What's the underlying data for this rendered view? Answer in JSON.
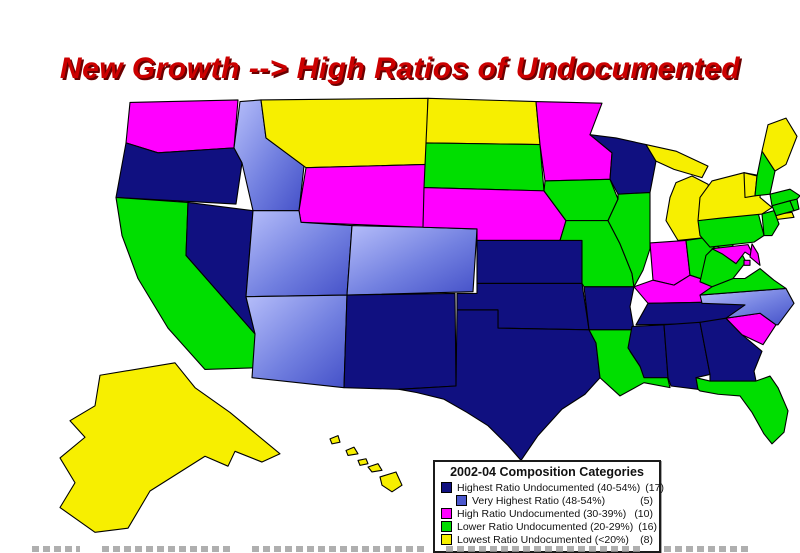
{
  "slide": {
    "title": "New Growth --> High Ratios of Undocumented",
    "title_color": "#cc0000"
  },
  "legend": {
    "title": "2002-04 Composition Categories",
    "rows": [
      {
        "key": "highest",
        "label": "Highest Ratio Undocumented (40-54%)",
        "count": "(17)",
        "indent": false
      },
      {
        "key": "very_highest",
        "label": "Very Highest Ratio (48-54%)",
        "count": "(5)",
        "indent": true
      },
      {
        "key": "high",
        "label": "High Ratio Undocumented (30-39%)",
        "count": "(10)",
        "indent": false
      },
      {
        "key": "lower",
        "label": "Lower Ratio Undocumented (20-29%)",
        "count": "(16)",
        "indent": false
      },
      {
        "key": "lowest",
        "label": "Lowest Ratio Undocumented (<20%)",
        "count": "(8)",
        "indent": false
      }
    ]
  },
  "categories": {
    "highest": {
      "label": "Highest Ratio Undocumented (40-54%)",
      "color": "#101080",
      "legend_color": "#101080"
    },
    "very_highest": {
      "label": "Very Highest Ratio (48-54%)",
      "color": "gradient",
      "legend_color": "#4b58cc"
    },
    "high": {
      "label": "High Ratio Undocumented (30-39%)",
      "color": "#ff00ff",
      "legend_color": "#ff00ff"
    },
    "lower": {
      "label": "Lower Ratio Undocumented (20-29%)",
      "color": "#00de00",
      "legend_color": "#00de00"
    },
    "lowest": {
      "label": "Lowest Ratio Undocumented (<20%)",
      "color": "#f7ef00",
      "legend_color": "#f7ef00"
    }
  },
  "map": {
    "region": "United States",
    "states": {
      "WA": "high",
      "OR": "highest",
      "CA": "lower",
      "NV": "highest",
      "ID": "very_highest",
      "MT": "lowest",
      "WY": "high",
      "UT": "very_highest",
      "CO": "very_highest",
      "AZ": "very_highest",
      "NM": "highest",
      "ND": "lowest",
      "SD": "lower",
      "NE": "high",
      "KS": "highest",
      "OK": "highest",
      "TX": "highest",
      "MN": "high",
      "IA": "lower",
      "MO": "lower",
      "AR": "highest",
      "LA": "lower",
      "WI": "highest",
      "IL": "lower",
      "MI": "lowest",
      "IN": "high",
      "OH": "lower",
      "KY": "high",
      "TN": "highest",
      "MS": "highest",
      "AL": "highest",
      "GA": "highest",
      "FL": "lower",
      "SC": "high",
      "NC": "very_highest",
      "VA": "lower",
      "WV": "lower",
      "PA": "lower",
      "NY": "lowest",
      "VT": "lowest",
      "NH": "lower",
      "ME": "lowest",
      "MA": "lower",
      "CT": "lower",
      "RI": "lower",
      "NJ": "lower",
      "MD": "high",
      "DE": "high",
      "DC": "high",
      "AK": "lowest",
      "HI": "lowest"
    }
  },
  "chart_data": {
    "type": "heatmap",
    "subtype": "us-choropleth",
    "title": "2002-04 Composition Categories",
    "legend_position": "bottom-right",
    "series": [
      {
        "name": "Highest Ratio Undocumented (40-54%)",
        "count": 17,
        "states": [
          "OR",
          "NV",
          "NM",
          "TX",
          "OK",
          "KS",
          "WI",
          "TN",
          "AR",
          "MS",
          "AL",
          "GA",
          "ID",
          "UT",
          "CO",
          "AZ",
          "NC"
        ]
      },
      {
        "name": "Very Highest Ratio (48-54%)",
        "count": 5,
        "states": [
          "ID",
          "UT",
          "CO",
          "AZ",
          "NC"
        ]
      },
      {
        "name": "High Ratio Undocumented (30-39%)",
        "count": 10,
        "states": [
          "WA",
          "WY",
          "NE",
          "MN",
          "IN",
          "KY",
          "SC",
          "MD",
          "DE",
          "DC"
        ]
      },
      {
        "name": "Lower Ratio Undocumented (20-29%)",
        "count": 16,
        "states": [
          "CA",
          "SD",
          "IA",
          "MO",
          "IL",
          "OH",
          "PA",
          "WV",
          "VA",
          "NH",
          "MA",
          "RI",
          "CT",
          "NJ",
          "LA",
          "FL"
        ]
      },
      {
        "name": "Lowest Ratio Undocumented (<20%)",
        "count": 8,
        "states": [
          "MT",
          "ND",
          "MI",
          "NY",
          "VT",
          "ME",
          "AK",
          "HI"
        ]
      }
    ]
  }
}
